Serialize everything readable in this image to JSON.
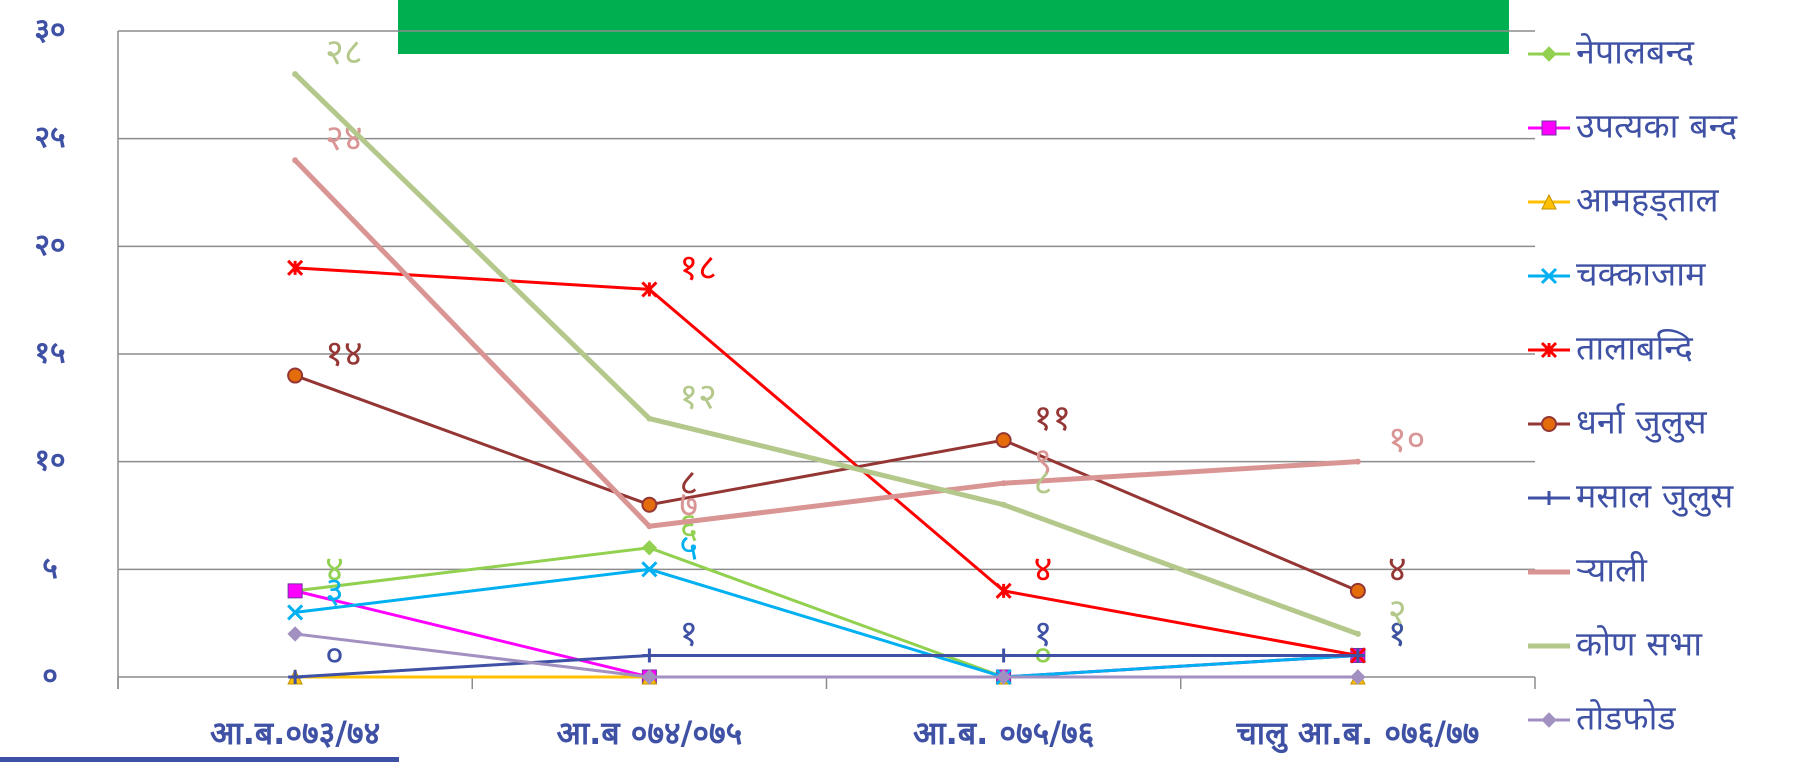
{
  "chart_data": {
    "type": "line",
    "categories": [
      "आ.ब.०७३/७४",
      "आ.ब ०७४/०७५",
      "आ.ब. ०७५/७६",
      "चालु आ.ब. ०७६/७७"
    ],
    "ylim": [
      0,
      30
    ],
    "yticks": [
      {
        "value": 0,
        "label": "०"
      },
      {
        "value": 5,
        "label": "५"
      },
      {
        "value": 10,
        "label": "१०"
      },
      {
        "value": 15,
        "label": "१५"
      },
      {
        "value": 20,
        "label": "२०"
      },
      {
        "value": 25,
        "label": "२५"
      },
      {
        "value": 30,
        "label": "३०"
      }
    ],
    "grid": true,
    "legend": "right",
    "series": [
      {
        "name": "नेपालबन्द",
        "color": "#92d050",
        "marker": "diamond",
        "values": [
          4,
          6,
          0,
          1
        ],
        "value_labels": [
          "४",
          "६",
          "०",
          "१"
        ]
      },
      {
        "name": "उपत्यका बन्द",
        "color": "#ff00ff",
        "marker": "square",
        "values": [
          4,
          0,
          0,
          1
        ],
        "value_labels": [
          null,
          null,
          null,
          null
        ]
      },
      {
        "name": "आमहड्ताल",
        "color": "#ffc000",
        "marker": "triangle",
        "values": [
          0,
          0,
          0,
          0
        ],
        "value_labels": [
          null,
          null,
          null,
          null
        ]
      },
      {
        "name": "चक्काजाम",
        "color": "#00b0f0",
        "marker": "x",
        "values": [
          3,
          5,
          0,
          1
        ],
        "value_labels": [
          "३",
          "५",
          null,
          null
        ]
      },
      {
        "name": "तालाबन्दि",
        "color": "#ff0000",
        "marker": "star",
        "values": [
          19,
          18,
          4,
          1
        ],
        "value_labels": [
          null,
          "१८",
          "४",
          null
        ]
      },
      {
        "name": "धर्ना जुलुस",
        "color": "#943634",
        "marker": "circle",
        "values": [
          14,
          8,
          11,
          4
        ],
        "value_labels": [
          "१४",
          "८",
          "११",
          "४"
        ]
      },
      {
        "name": "मसाल जुलुस",
        "color": "#3f51a5",
        "marker": "plus",
        "values": [
          0,
          1,
          1,
          1
        ],
        "value_labels": [
          "०",
          "१",
          "१",
          "१"
        ]
      },
      {
        "name": "र्‍याली",
        "color": "#d99594",
        "marker": "none",
        "values": [
          24,
          7,
          9,
          10
        ],
        "value_labels": [
          "२४",
          "७",
          "९",
          "१०"
        ]
      },
      {
        "name": "कोण सभा",
        "color": "#b3c88a",
        "marker": "none",
        "values": [
          28,
          12,
          8,
          2
        ],
        "value_labels": [
          "२८",
          "१२",
          "८",
          "२"
        ]
      },
      {
        "name": "तोडफोड",
        "color": "#a291c0",
        "marker": "diamond",
        "values": [
          2,
          0,
          0,
          0
        ],
        "value_labels": [
          null,
          null,
          null,
          null
        ]
      }
    ]
  }
}
